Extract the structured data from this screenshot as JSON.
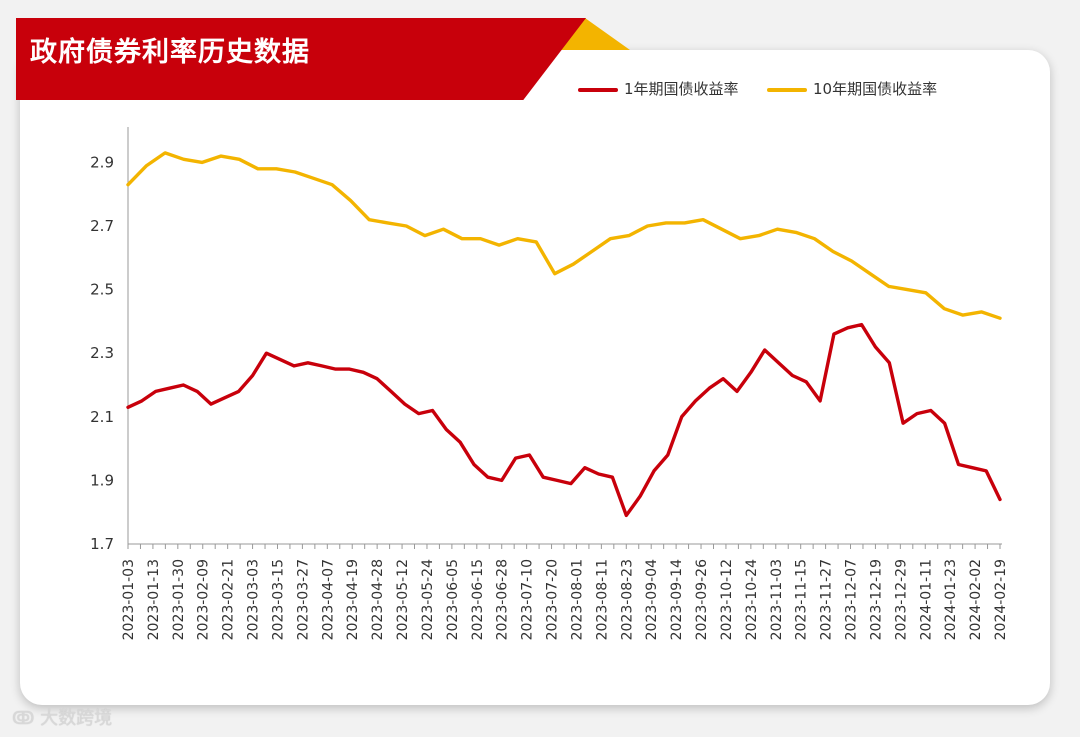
{
  "header": {
    "title": "政府债券利率历史数据"
  },
  "watermark": {
    "text": "大数跨境"
  },
  "chart_data": {
    "type": "line",
    "title": "政府债券利率历史数据",
    "xlabel": "",
    "ylabel": "",
    "ylim": [
      1.7,
      2.98
    ],
    "yticks": [
      "1.7",
      "1.9",
      "2.1",
      "2.3",
      "2.5",
      "2.7",
      "2.9"
    ],
    "grid": false,
    "legend_position": "top-right",
    "x_tick_labels": [
      "2023-01-03",
      "2023-01-13",
      "2023-01-30",
      "2023-02-09",
      "2023-02-21",
      "2023-03-03",
      "2023-03-15",
      "2023-03-27",
      "2023-04-07",
      "2023-04-19",
      "2023-04-28",
      "2023-05-12",
      "2023-05-24",
      "2023-06-05",
      "2023-06-15",
      "2023-06-28",
      "2023-07-10",
      "2023-07-20",
      "2023-08-01",
      "2023-08-11",
      "2023-08-23",
      "2023-09-04",
      "2023-09-14",
      "2023-09-26",
      "2023-10-12",
      "2023-10-24",
      "2023-11-03",
      "2023-11-15",
      "2023-11-27",
      "2023-12-07",
      "2023-12-19",
      "2023-12-29",
      "2024-01-11",
      "2024-01-23",
      "2024-02-02",
      "2024-02-19"
    ],
    "series": [
      {
        "name": "1年期国债收益率",
        "color": "#c8000b",
        "values": [
          2.13,
          2.15,
          2.18,
          2.19,
          2.2,
          2.18,
          2.14,
          2.16,
          2.18,
          2.23,
          2.3,
          2.28,
          2.26,
          2.27,
          2.26,
          2.25,
          2.25,
          2.24,
          2.22,
          2.18,
          2.14,
          2.11,
          2.12,
          2.06,
          2.02,
          1.95,
          1.91,
          1.9,
          1.97,
          1.98,
          1.91,
          1.9,
          1.89,
          1.94,
          1.92,
          1.91,
          1.79,
          1.85,
          1.93,
          1.98,
          2.1,
          2.15,
          2.19,
          2.22,
          2.18,
          2.24,
          2.31,
          2.27,
          2.23,
          2.21,
          2.15,
          2.36,
          2.38,
          2.39,
          2.32,
          2.27,
          2.08,
          2.11,
          2.12,
          2.08,
          1.95,
          1.94,
          1.93,
          1.84
        ]
      },
      {
        "name": "10年期国债收益率",
        "color": "#f3b400",
        "values": [
          2.83,
          2.89,
          2.93,
          2.91,
          2.9,
          2.92,
          2.91,
          2.88,
          2.88,
          2.87,
          2.85,
          2.83,
          2.78,
          2.72,
          2.71,
          2.7,
          2.67,
          2.69,
          2.66,
          2.66,
          2.64,
          2.66,
          2.65,
          2.55,
          2.58,
          2.62,
          2.66,
          2.67,
          2.7,
          2.71,
          2.71,
          2.72,
          2.69,
          2.66,
          2.67,
          2.69,
          2.68,
          2.66,
          2.62,
          2.59,
          2.55,
          2.51,
          2.5,
          2.49,
          2.44,
          2.42,
          2.43,
          2.41
        ]
      }
    ]
  }
}
